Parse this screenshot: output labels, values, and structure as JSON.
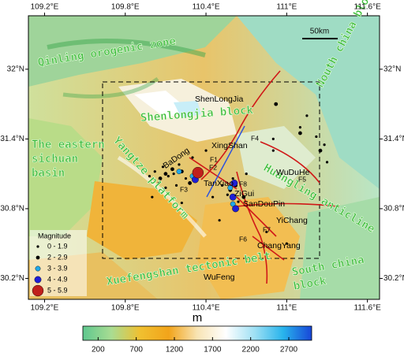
{
  "chart_data": {
    "type": "map",
    "xlim": [
      109.08,
      111.69
    ],
    "ylim": [
      30.02,
      32.46
    ],
    "xticks": [
      {
        "value": 109.2,
        "label": "109.2°E"
      },
      {
        "value": 109.8,
        "label": "109.8°E"
      },
      {
        "value": 110.4,
        "label": "110.4°E"
      },
      {
        "value": 111,
        "label": "111°E"
      },
      {
        "value": 111.6,
        "label": "111.6°E"
      }
    ],
    "yticks": [
      {
        "value": 32,
        "label": "32°N"
      },
      {
        "value": 31.4,
        "label": "31.4°N"
      },
      {
        "value": 30.8,
        "label": "30.8°N"
      },
      {
        "value": 30.2,
        "label": "30.2°N"
      }
    ],
    "scale_bar": "50km",
    "regions": {
      "qinling": "Qinling orogenic zone",
      "north_china": "Nouth china block",
      "shenlongjia": "Shenlongjia block",
      "sichuan": [
        "The eastern",
        "sichuan",
        "basin"
      ],
      "yangtze": "Yangtze platform",
      "huangling": "Huangling anticline",
      "xuefengshan": "Xuefengshan tectonic belt",
      "south_china": [
        "South china",
        "block"
      ]
    },
    "places": {
      "shenlongjia": "ShenLongJia",
      "xingshan": "XingShan",
      "badong": "BaDong",
      "tanxiao": "TanXiao",
      "zigui": "ZiGui",
      "sandoupin": "SanDouPin",
      "wuduhe": "WuDuHe",
      "yichang": "YiChang",
      "changyang": "ChangYang",
      "wufeng": "WuFeng"
    },
    "faults": [
      "F1",
      "F2",
      "F3",
      "F4",
      "F5",
      "F6",
      "F7",
      "F8"
    ],
    "legend_title": "Magnitude",
    "series": [
      {
        "name": "0 - 1.9",
        "color": "#000000",
        "marker_size": 1.6,
        "lon": [
          110.02,
          110.08,
          110.12,
          110.16,
          110.2,
          110.25,
          110.05,
          110.1,
          110.18,
          109.98,
          110.3,
          110.52,
          110.56,
          110.6,
          110.64,
          110.7,
          110.9,
          111.1,
          111.22,
          111.28,
          111.3,
          110.45,
          110.5,
          110.85,
          111.0,
          110.9,
          111.15,
          110.4,
          110.0,
          110.22
        ],
        "lat": [
          31.12,
          31.16,
          31.08,
          31.1,
          31.18,
          31.06,
          31.02,
          30.98,
          31.0,
          31.08,
          31.24,
          31.0,
          30.92,
          31.06,
          30.86,
          31.1,
          31.4,
          31.5,
          31.42,
          31.35,
          31.2,
          30.9,
          30.7,
          30.6,
          30.5,
          31.3,
          31.6,
          31.3,
          30.9,
          30.85
        ]
      },
      {
        "name": "2 - 2.9",
        "color": "#000000",
        "marker_size": 2.4,
        "lon": [
          110.1,
          110.15,
          110.22,
          110.06,
          110.28,
          110.58,
          110.62,
          110.68,
          111.1,
          111.25,
          110.92
        ],
        "lat": [
          31.1,
          31.14,
          31.12,
          31.06,
          31.02,
          30.96,
          31.0,
          30.9,
          31.45,
          31.3,
          31.7
        ]
      },
      {
        "name": "3 - 3.9",
        "color": "#22a8e8",
        "marker_size": 3.2,
        "lon": [
          110.2,
          110.3,
          110.58,
          110.6
        ],
        "lat": [
          31.12,
          31.08,
          30.98,
          30.84
        ]
      },
      {
        "name": "4 - 4.9",
        "color": "#1f1fd6",
        "marker_size": 4.2,
        "lon": [
          110.32,
          110.61,
          110.6,
          110.62
        ],
        "lat": [
          31.05,
          31.02,
          30.9,
          30.8
        ]
      },
      {
        "name": "5 - 5.9",
        "color": "#c0201c",
        "marker_size": 7,
        "lon": [
          110.34
        ],
        "lat": [
          31.11
        ]
      }
    ],
    "colorbar": {
      "label": "m",
      "lim": [
        0,
        3000
      ],
      "ticks": [
        200,
        700,
        1200,
        1700,
        2200,
        2700
      ],
      "colors": [
        "#5fc88f",
        "#a9dc92",
        "#f0c030",
        "#f2a41a",
        "#f8e4b4",
        "#ffffff",
        "#9fe0f4",
        "#28b4ec",
        "#1846d8"
      ]
    }
  }
}
